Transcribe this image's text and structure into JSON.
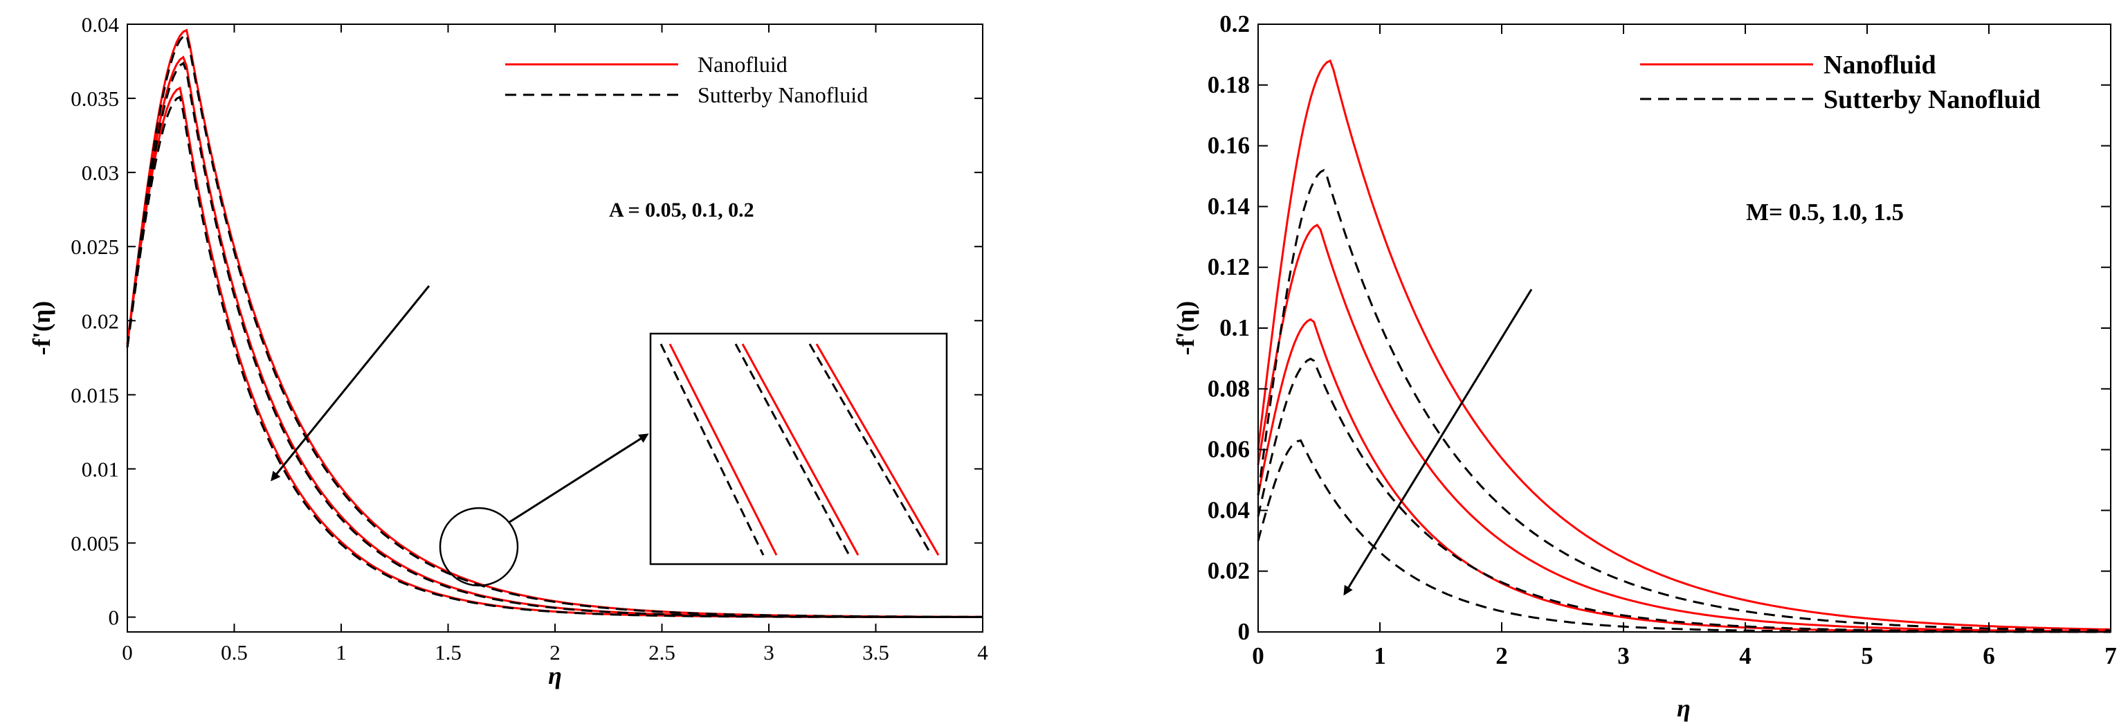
{
  "chart_data": [
    {
      "type": "line",
      "panel": "left",
      "xlabel": "η",
      "ylabel": "-f'(η)",
      "xlim": [
        0,
        4
      ],
      "ylim": [
        -0.001,
        0.04
      ],
      "xticks": [
        0,
        0.5,
        1,
        1.5,
        2,
        2.5,
        3,
        3.5,
        4
      ],
      "xtick_labels": [
        "0",
        "0.5",
        "1",
        "1.5",
        "2",
        "2.5",
        "3",
        "3.5",
        "4"
      ],
      "yticks": [
        0,
        0.005,
        0.01,
        0.015,
        0.02,
        0.025,
        0.03,
        0.035,
        0.04
      ],
      "ytick_labels": [
        "0",
        "0.005",
        "0.01",
        "0.015",
        "0.02",
        "0.025",
        "0.03",
        "0.035",
        "0.04"
      ],
      "legend": [
        "Nanofluid",
        "Sutterby Nanofluid"
      ],
      "legend_position": "top-right",
      "annotation": "A = 0.05, 0.1, 0.2",
      "parameter_values": [
        "0.05",
        "0.1",
        "0.2"
      ],
      "series": [
        {
          "name": "Nanofluid",
          "style": "solid",
          "color": "#ff0000",
          "a": 0.0184,
          "peak_x": 0.28,
          "peak_y": 0.0396,
          "k": 2.1
        },
        {
          "name": "Nanofluid",
          "style": "solid",
          "color": "#ff0000",
          "a": 0.0184,
          "peak_x": 0.27,
          "peak_y": 0.0378,
          "k": 2.35
        },
        {
          "name": "Nanofluid",
          "style": "solid",
          "color": "#ff0000",
          "a": 0.0184,
          "peak_x": 0.25,
          "peak_y": 0.0357,
          "k": 2.6
        },
        {
          "name": "Sutterby Nanofluid",
          "style": "dashed",
          "color": "#000000",
          "a": 0.0182,
          "peak_x": 0.28,
          "peak_y": 0.0393,
          "k": 2.12
        },
        {
          "name": "Sutterby Nanofluid",
          "style": "dashed",
          "color": "#000000",
          "a": 0.0182,
          "peak_x": 0.27,
          "peak_y": 0.0374,
          "k": 2.37
        },
        {
          "name": "Sutterby Nanofluid",
          "style": "dashed",
          "color": "#000000",
          "a": 0.0182,
          "peak_x": 0.25,
          "peak_y": 0.0351,
          "k": 2.62
        }
      ],
      "zoom_inset": {
        "center_x": 1.65,
        "center_y": 0.0052,
        "radius": 0.18
      }
    },
    {
      "type": "line",
      "panel": "right",
      "xlabel": "η",
      "ylabel": "-f'(η)",
      "xlim": [
        0,
        7
      ],
      "ylim": [
        0,
        0.2
      ],
      "xticks": [
        0,
        1,
        2,
        3,
        4,
        5,
        6,
        7
      ],
      "xtick_labels": [
        "0",
        "1",
        "2",
        "3",
        "4",
        "5",
        "6",
        "7"
      ],
      "yticks": [
        0,
        0.02,
        0.04,
        0.06,
        0.08,
        0.1,
        0.12,
        0.14,
        0.16,
        0.18,
        0.2
      ],
      "ytick_labels": [
        "0",
        "0.02",
        "0.04",
        "0.06",
        "0.08",
        "0.1",
        "0.12",
        "0.14",
        "0.16",
        "0.18",
        "0.2"
      ],
      "legend": [
        "Nanofluid",
        "Sutterby Nanofluid"
      ],
      "legend_position": "top-right",
      "annotation": "M= 0.5, 1.0, 1.5",
      "parameter_values": [
        "0.5",
        "1.0",
        "1.5"
      ],
      "series": [
        {
          "name": "Nanofluid",
          "style": "solid",
          "color": "#ff0000",
          "a": 0.06,
          "peak_x": 0.6,
          "peak_y": 0.188,
          "k": 0.85
        },
        {
          "name": "Nanofluid",
          "style": "solid",
          "color": "#ff0000",
          "a": 0.055,
          "peak_x": 0.5,
          "peak_y": 0.134,
          "k": 1.0
        },
        {
          "name": "Nanofluid",
          "style": "solid",
          "color": "#ff0000",
          "a": 0.045,
          "peak_x": 0.45,
          "peak_y": 0.103,
          "k": 1.2
        },
        {
          "name": "Sutterby Nanofluid",
          "style": "dashed",
          "color": "#000000",
          "a": 0.045,
          "peak_x": 0.55,
          "peak_y": 0.152,
          "k": 0.9
        },
        {
          "name": "Sutterby Nanofluid",
          "style": "dashed",
          "color": "#000000",
          "a": 0.038,
          "peak_x": 0.45,
          "peak_y": 0.09,
          "k": 1.1
        },
        {
          "name": "Sutterby Nanofluid",
          "style": "dashed",
          "color": "#000000",
          "a": 0.03,
          "peak_x": 0.35,
          "peak_y": 0.063,
          "k": 1.35
        }
      ]
    }
  ]
}
